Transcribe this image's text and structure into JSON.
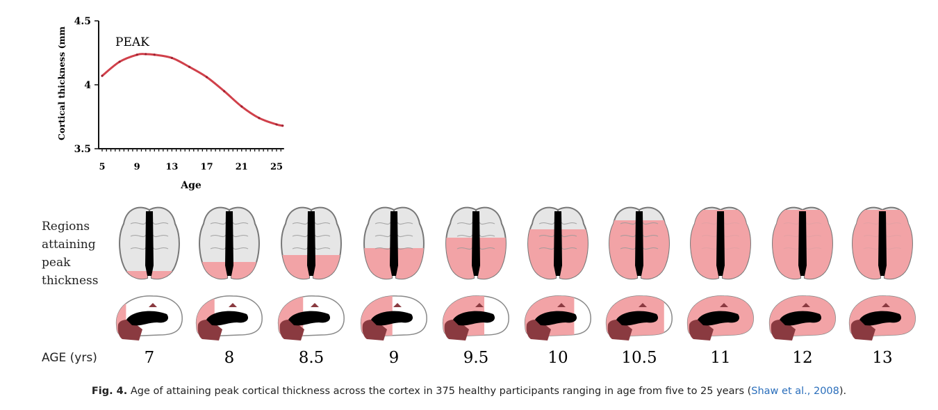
{
  "chart_data": {
    "type": "line",
    "title": "",
    "annotation": "PEAK",
    "xlabel": "Age",
    "ylabel": "Cortical thickness (mm",
    "xlim": [
      5,
      25.7
    ],
    "ylim": [
      3.5,
      4.5
    ],
    "xticks": [
      "5",
      "9",
      "13",
      "17",
      "21",
      "25"
    ],
    "yticks": [
      "3.5",
      "4",
      "4.5"
    ],
    "grid": false,
    "series": [
      {
        "color": "#d0404a",
        "x": [
          5,
          7,
          9,
          10,
          11,
          13,
          15,
          17,
          19,
          21,
          23,
          25,
          25.7
        ],
        "y": [
          4.07,
          4.18,
          4.235,
          4.24,
          4.235,
          4.21,
          4.14,
          4.06,
          3.95,
          3.83,
          3.74,
          3.69,
          3.68
        ]
      }
    ]
  },
  "figure": {
    "regions_label": [
      "Regions",
      "attaining",
      "peak",
      "thickness"
    ],
    "age_label": "AGE (yrs)",
    "ages": [
      "7",
      "8",
      "8.5",
      "9",
      "9.5",
      "10",
      "10.5",
      "11",
      "12",
      "13"
    ],
    "colors": {
      "peak_region": "#f2a3a6",
      "subcortical": "#8a3a40",
      "cortex": "#e6e6e6"
    }
  },
  "caption": {
    "label": "Fig. 4.",
    "text": " Age of attaining peak cortical thickness across the cortex in 375 healthy participants ranging in age from five to 25 years (",
    "reference": "Shaw et al., 2008",
    "end": ")."
  }
}
